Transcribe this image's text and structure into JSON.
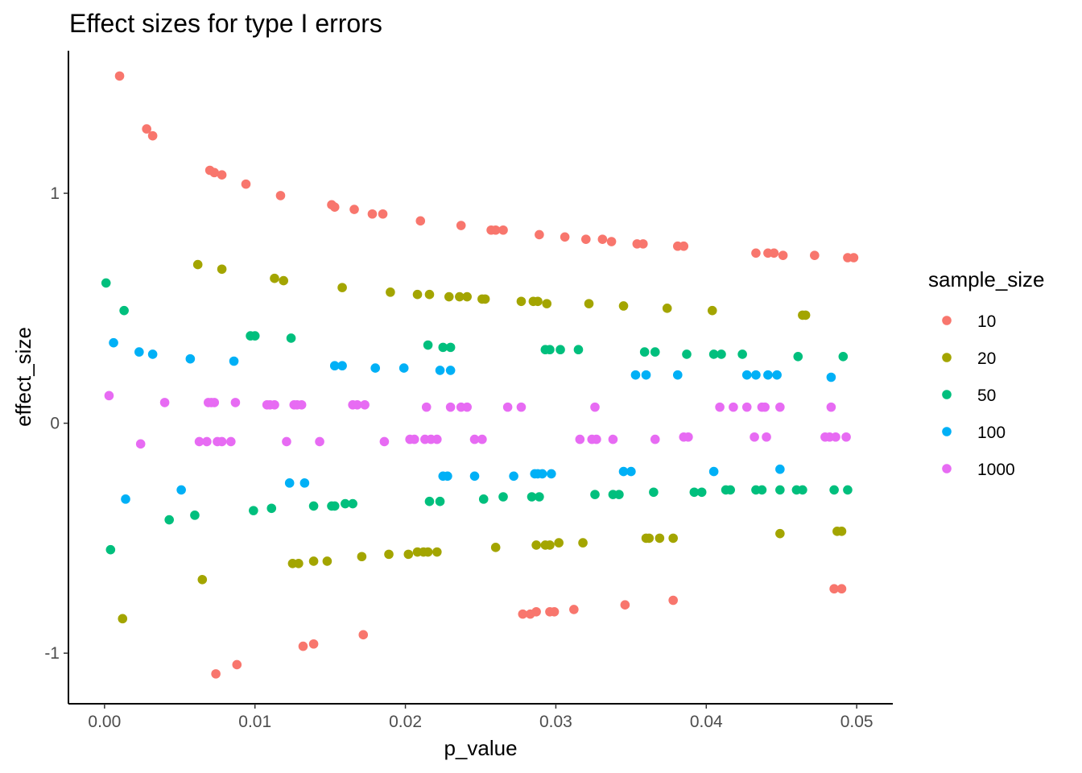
{
  "chart_data": {
    "type": "scatter",
    "title": "Effect sizes for type I errors",
    "xlabel": "p_value",
    "ylabel": "effect_size",
    "xlim": [
      -0.0024,
      0.0524
    ],
    "ylim": [
      -1.22,
      1.62
    ],
    "x_ticks": [
      0,
      0.01,
      0.02,
      0.03,
      0.04,
      0.05
    ],
    "x_tick_labels": [
      "0.00",
      "0.01",
      "0.02",
      "0.03",
      "0.04",
      "0.05"
    ],
    "y_ticks": [
      -1,
      0,
      1
    ],
    "y_tick_labels": [
      "-1",
      "0",
      "1"
    ],
    "grid": false,
    "legend": {
      "title": "sample_size",
      "position": "right"
    },
    "series": [
      {
        "name": "10",
        "color": "#F8766D",
        "points": [
          [
            0.001,
            1.51
          ],
          [
            0.0028,
            1.28
          ],
          [
            0.0032,
            1.25
          ],
          [
            0.007,
            1.1
          ],
          [
            0.0073,
            1.09
          ],
          [
            0.0078,
            1.08
          ],
          [
            0.0094,
            1.04
          ],
          [
            0.0117,
            0.99
          ],
          [
            0.0151,
            0.95
          ],
          [
            0.0153,
            0.94
          ],
          [
            0.0166,
            0.93
          ],
          [
            0.0178,
            0.91
          ],
          [
            0.0185,
            0.91
          ],
          [
            0.021,
            0.88
          ],
          [
            0.0237,
            0.86
          ],
          [
            0.0257,
            0.84
          ],
          [
            0.026,
            0.84
          ],
          [
            0.0265,
            0.84
          ],
          [
            0.0289,
            0.82
          ],
          [
            0.0306,
            0.81
          ],
          [
            0.032,
            0.8
          ],
          [
            0.0331,
            0.8
          ],
          [
            0.0337,
            0.79
          ],
          [
            0.0354,
            0.78
          ],
          [
            0.0358,
            0.78
          ],
          [
            0.0381,
            0.77
          ],
          [
            0.0385,
            0.77
          ],
          [
            0.0433,
            0.74
          ],
          [
            0.0441,
            0.74
          ],
          [
            0.0445,
            0.74
          ],
          [
            0.0451,
            0.73
          ],
          [
            0.0472,
            0.73
          ],
          [
            0.0494,
            0.72
          ],
          [
            0.0498,
            0.72
          ],
          [
            0.0074,
            -1.09
          ],
          [
            0.0088,
            -1.05
          ],
          [
            0.0132,
            -0.97
          ],
          [
            0.0139,
            -0.96
          ],
          [
            0.0172,
            -0.92
          ],
          [
            0.0278,
            -0.83
          ],
          [
            0.0283,
            -0.83
          ],
          [
            0.0287,
            -0.82
          ],
          [
            0.0296,
            -0.82
          ],
          [
            0.0299,
            -0.82
          ],
          [
            0.0312,
            -0.81
          ],
          [
            0.0346,
            -0.79
          ],
          [
            0.0378,
            -0.77
          ],
          [
            0.0485,
            -0.72
          ],
          [
            0.049,
            -0.72
          ]
        ]
      },
      {
        "name": "20",
        "color": "#A3A500",
        "points": [
          [
            0.0062,
            0.69
          ],
          [
            0.0078,
            0.67
          ],
          [
            0.0113,
            0.63
          ],
          [
            0.0119,
            0.62
          ],
          [
            0.0158,
            0.59
          ],
          [
            0.019,
            0.57
          ],
          [
            0.0208,
            0.56
          ],
          [
            0.0216,
            0.56
          ],
          [
            0.0229,
            0.55
          ],
          [
            0.0236,
            0.55
          ],
          [
            0.0241,
            0.55
          ],
          [
            0.0251,
            0.54
          ],
          [
            0.0253,
            0.54
          ],
          [
            0.0277,
            0.53
          ],
          [
            0.0285,
            0.53
          ],
          [
            0.0288,
            0.53
          ],
          [
            0.0294,
            0.52
          ],
          [
            0.0322,
            0.52
          ],
          [
            0.0345,
            0.51
          ],
          [
            0.0374,
            0.5
          ],
          [
            0.0404,
            0.49
          ],
          [
            0.0464,
            0.47
          ],
          [
            0.0466,
            0.47
          ],
          [
            0.0012,
            -0.85
          ],
          [
            0.0065,
            -0.68
          ],
          [
            0.0125,
            -0.61
          ],
          [
            0.0129,
            -0.61
          ],
          [
            0.0139,
            -0.6
          ],
          [
            0.0148,
            -0.6
          ],
          [
            0.0171,
            -0.58
          ],
          [
            0.0189,
            -0.57
          ],
          [
            0.0202,
            -0.57
          ],
          [
            0.0208,
            -0.56
          ],
          [
            0.0212,
            -0.56
          ],
          [
            0.0215,
            -0.56
          ],
          [
            0.0221,
            -0.56
          ],
          [
            0.026,
            -0.54
          ],
          [
            0.0287,
            -0.53
          ],
          [
            0.0293,
            -0.53
          ],
          [
            0.0296,
            -0.53
          ],
          [
            0.0302,
            -0.52
          ],
          [
            0.0318,
            -0.52
          ],
          [
            0.036,
            -0.5
          ],
          [
            0.0362,
            -0.5
          ],
          [
            0.0369,
            -0.5
          ],
          [
            0.0378,
            -0.5
          ],
          [
            0.0449,
            -0.48
          ],
          [
            0.0487,
            -0.47
          ],
          [
            0.049,
            -0.47
          ]
        ]
      },
      {
        "name": "50",
        "color": "#00BF7D",
        "points": [
          [
            0.0001,
            0.61
          ],
          [
            0.0013,
            0.49
          ],
          [
            0.0097,
            0.38
          ],
          [
            0.01,
            0.38
          ],
          [
            0.0124,
            0.37
          ],
          [
            0.0215,
            0.34
          ],
          [
            0.0225,
            0.33
          ],
          [
            0.023,
            0.33
          ],
          [
            0.0293,
            0.32
          ],
          [
            0.0296,
            0.32
          ],
          [
            0.0303,
            0.32
          ],
          [
            0.0315,
            0.32
          ],
          [
            0.0359,
            0.31
          ],
          [
            0.0366,
            0.31
          ],
          [
            0.0387,
            0.3
          ],
          [
            0.0405,
            0.3
          ],
          [
            0.041,
            0.3
          ],
          [
            0.0424,
            0.3
          ],
          [
            0.0461,
            0.29
          ],
          [
            0.0491,
            0.29
          ],
          [
            0.0004,
            -0.55
          ],
          [
            0.0043,
            -0.42
          ],
          [
            0.006,
            -0.4
          ],
          [
            0.0099,
            -0.38
          ],
          [
            0.0111,
            -0.37
          ],
          [
            0.0139,
            -0.36
          ],
          [
            0.0151,
            -0.36
          ],
          [
            0.0153,
            -0.36
          ],
          [
            0.016,
            -0.35
          ],
          [
            0.0165,
            -0.35
          ],
          [
            0.0216,
            -0.34
          ],
          [
            0.0223,
            -0.34
          ],
          [
            0.0252,
            -0.33
          ],
          [
            0.0265,
            -0.32
          ],
          [
            0.0284,
            -0.32
          ],
          [
            0.0289,
            -0.32
          ],
          [
            0.0326,
            -0.31
          ],
          [
            0.0338,
            -0.31
          ],
          [
            0.0342,
            -0.31
          ],
          [
            0.0365,
            -0.3
          ],
          [
            0.0392,
            -0.3
          ],
          [
            0.0397,
            -0.3
          ],
          [
            0.0413,
            -0.29
          ],
          [
            0.0416,
            -0.29
          ],
          [
            0.0433,
            -0.29
          ],
          [
            0.0437,
            -0.29
          ],
          [
            0.0449,
            -0.29
          ],
          [
            0.046,
            -0.29
          ],
          [
            0.0464,
            -0.29
          ],
          [
            0.0485,
            -0.29
          ],
          [
            0.0494,
            -0.29
          ]
        ]
      },
      {
        "name": "100",
        "color": "#00B0F6",
        "points": [
          [
            0.0006,
            0.35
          ],
          [
            0.0023,
            0.31
          ],
          [
            0.0032,
            0.3
          ],
          [
            0.0057,
            0.28
          ],
          [
            0.0086,
            0.27
          ],
          [
            0.0153,
            0.25
          ],
          [
            0.0158,
            0.25
          ],
          [
            0.018,
            0.24
          ],
          [
            0.0199,
            0.24
          ],
          [
            0.0223,
            0.23
          ],
          [
            0.023,
            0.23
          ],
          [
            0.0353,
            0.21
          ],
          [
            0.036,
            0.21
          ],
          [
            0.0381,
            0.21
          ],
          [
            0.0427,
            0.21
          ],
          [
            0.0433,
            0.21
          ],
          [
            0.0441,
            0.21
          ],
          [
            0.0447,
            0.21
          ],
          [
            0.0483,
            0.2
          ],
          [
            0.0014,
            -0.33
          ],
          [
            0.0051,
            -0.29
          ],
          [
            0.0123,
            -0.26
          ],
          [
            0.0133,
            -0.26
          ],
          [
            0.0225,
            -0.23
          ],
          [
            0.0228,
            -0.23
          ],
          [
            0.0246,
            -0.23
          ],
          [
            0.0272,
            -0.23
          ],
          [
            0.0286,
            -0.22
          ],
          [
            0.0288,
            -0.22
          ],
          [
            0.0291,
            -0.22
          ],
          [
            0.0297,
            -0.22
          ],
          [
            0.0345,
            -0.21
          ],
          [
            0.035,
            -0.21
          ],
          [
            0.0405,
            -0.21
          ],
          [
            0.0449,
            -0.2
          ]
        ]
      },
      {
        "name": "1000",
        "color": "#E76BF3",
        "points": [
          [
            0.0003,
            0.12
          ],
          [
            0.004,
            0.09
          ],
          [
            0.0069,
            0.09
          ],
          [
            0.0071,
            0.09
          ],
          [
            0.0073,
            0.09
          ],
          [
            0.0087,
            0.09
          ],
          [
            0.0108,
            0.08
          ],
          [
            0.011,
            0.08
          ],
          [
            0.0113,
            0.08
          ],
          [
            0.0126,
            0.08
          ],
          [
            0.0128,
            0.08
          ],
          [
            0.0131,
            0.08
          ],
          [
            0.0165,
            0.08
          ],
          [
            0.0168,
            0.08
          ],
          [
            0.0173,
            0.08
          ],
          [
            0.0214,
            0.07
          ],
          [
            0.023,
            0.07
          ],
          [
            0.0237,
            0.07
          ],
          [
            0.0241,
            0.07
          ],
          [
            0.0268,
            0.07
          ],
          [
            0.0277,
            0.07
          ],
          [
            0.0326,
            0.07
          ],
          [
            0.0409,
            0.07
          ],
          [
            0.0418,
            0.07
          ],
          [
            0.0427,
            0.07
          ],
          [
            0.0437,
            0.07
          ],
          [
            0.0439,
            0.07
          ],
          [
            0.0449,
            0.07
          ],
          [
            0.0483,
            0.07
          ],
          [
            0.0024,
            -0.09
          ],
          [
            0.0063,
            -0.08
          ],
          [
            0.0068,
            -0.08
          ],
          [
            0.0075,
            -0.08
          ],
          [
            0.0078,
            -0.08
          ],
          [
            0.0084,
            -0.08
          ],
          [
            0.0121,
            -0.08
          ],
          [
            0.0143,
            -0.08
          ],
          [
            0.0186,
            -0.08
          ],
          [
            0.0203,
            -0.07
          ],
          [
            0.0206,
            -0.07
          ],
          [
            0.0213,
            -0.07
          ],
          [
            0.0217,
            -0.07
          ],
          [
            0.0221,
            -0.07
          ],
          [
            0.0246,
            -0.07
          ],
          [
            0.0251,
            -0.07
          ],
          [
            0.0316,
            -0.07
          ],
          [
            0.0324,
            -0.07
          ],
          [
            0.0327,
            -0.07
          ],
          [
            0.0338,
            -0.07
          ],
          [
            0.0366,
            -0.07
          ],
          [
            0.0385,
            -0.06
          ],
          [
            0.0388,
            -0.06
          ],
          [
            0.0432,
            -0.06
          ],
          [
            0.044,
            -0.06
          ],
          [
            0.0479,
            -0.06
          ],
          [
            0.0482,
            -0.06
          ],
          [
            0.0486,
            -0.06
          ],
          [
            0.0493,
            -0.06
          ]
        ]
      }
    ]
  }
}
